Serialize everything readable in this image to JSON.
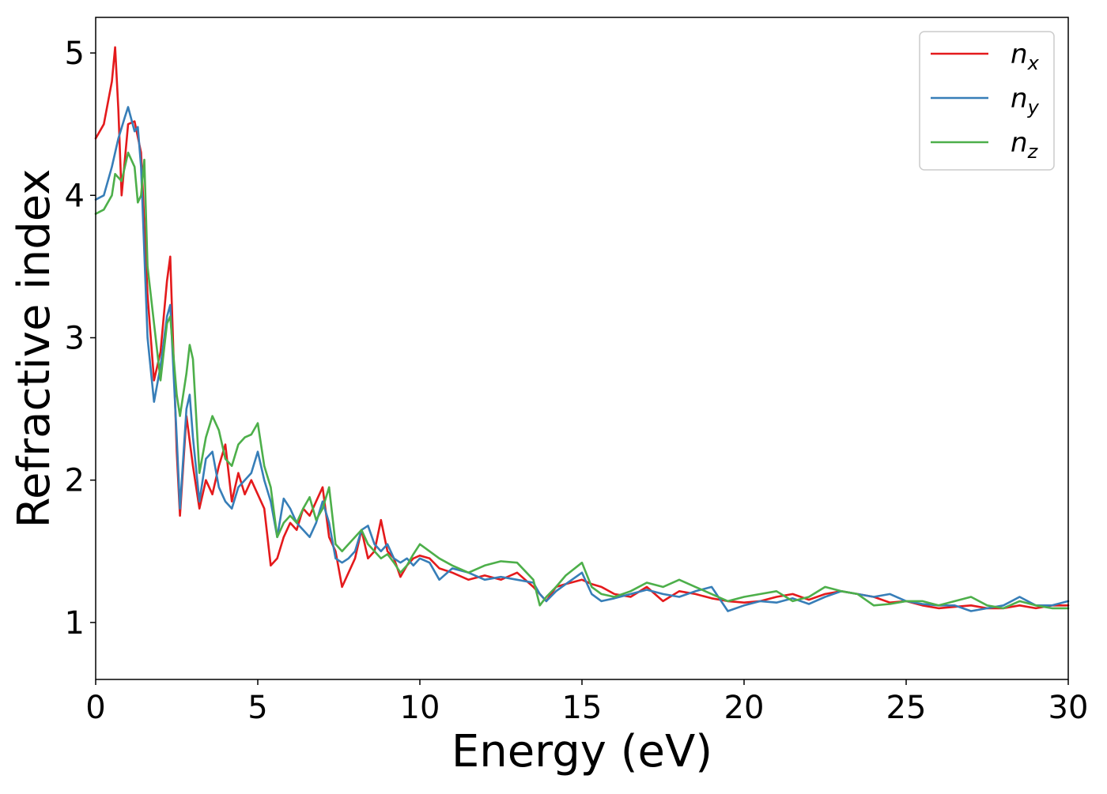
{
  "chart_data": {
    "type": "line",
    "title": "",
    "xlabel": "Energy (eV)",
    "ylabel": "Refractive index",
    "xlim": [
      0,
      30
    ],
    "ylim": [
      0.6,
      5.25
    ],
    "xticks": [
      0,
      5,
      10,
      15,
      20,
      25,
      30
    ],
    "yticks": [
      1,
      2,
      3,
      4,
      5
    ],
    "grid": false,
    "legend_position": "top-right",
    "series": [
      {
        "name": "n_x",
        "label_base": "n",
        "label_sub": "x",
        "color": "#e41a1c",
        "x": [
          0,
          0.25,
          0.5,
          0.6,
          0.7,
          0.8,
          1.0,
          1.2,
          1.4,
          1.6,
          1.8,
          2.0,
          2.2,
          2.3,
          2.5,
          2.6,
          2.8,
          3.0,
          3.2,
          3.4,
          3.6,
          3.8,
          4.0,
          4.2,
          4.4,
          4.6,
          4.8,
          5.0,
          5.2,
          5.4,
          5.6,
          5.8,
          6.0,
          6.2,
          6.4,
          6.6,
          6.8,
          7.0,
          7.2,
          7.4,
          7.6,
          7.8,
          8.0,
          8.2,
          8.4,
          8.6,
          8.8,
          9.0,
          9.2,
          9.4,
          9.6,
          9.8,
          10.0,
          10.3,
          10.6,
          11.0,
          11.5,
          12.0,
          12.5,
          13.0,
          13.5,
          13.7,
          13.9,
          14.2,
          14.5,
          15.0,
          15.3,
          15.6,
          16.0,
          16.5,
          17.0,
          17.5,
          18.0,
          18.5,
          19.0,
          19.5,
          20.0,
          20.5,
          21.0,
          21.5,
          22.0,
          22.5,
          23.0,
          23.5,
          24.0,
          24.5,
          25.0,
          25.5,
          26.0,
          26.5,
          27.0,
          27.5,
          28.0,
          28.5,
          29.0,
          29.5,
          30.0
        ],
        "y": [
          4.4,
          4.5,
          4.8,
          5.04,
          4.6,
          4.0,
          4.5,
          4.52,
          4.3,
          3.3,
          2.7,
          2.9,
          3.4,
          3.57,
          2.2,
          1.75,
          2.45,
          2.1,
          1.8,
          2.0,
          1.9,
          2.1,
          2.25,
          1.85,
          2.05,
          1.9,
          2.0,
          1.9,
          1.8,
          1.4,
          1.45,
          1.6,
          1.7,
          1.65,
          1.8,
          1.75,
          1.85,
          1.95,
          1.6,
          1.5,
          1.25,
          1.35,
          1.45,
          1.65,
          1.45,
          1.5,
          1.72,
          1.5,
          1.45,
          1.32,
          1.4,
          1.45,
          1.47,
          1.45,
          1.38,
          1.35,
          1.3,
          1.33,
          1.3,
          1.35,
          1.25,
          1.2,
          1.15,
          1.25,
          1.27,
          1.3,
          1.27,
          1.25,
          1.2,
          1.18,
          1.25,
          1.15,
          1.22,
          1.2,
          1.17,
          1.15,
          1.14,
          1.15,
          1.18,
          1.2,
          1.16,
          1.2,
          1.22,
          1.2,
          1.18,
          1.14,
          1.15,
          1.12,
          1.1,
          1.11,
          1.12,
          1.1,
          1.1,
          1.12,
          1.1,
          1.12,
          1.12
        ]
      },
      {
        "name": "n_y",
        "label_base": "n",
        "label_sub": "y",
        "color": "#377eb8",
        "x": [
          0,
          0.25,
          0.5,
          0.7,
          0.9,
          1.0,
          1.2,
          1.3,
          1.4,
          1.6,
          1.8,
          2.0,
          2.2,
          2.3,
          2.5,
          2.6,
          2.8,
          2.9,
          3.0,
          3.2,
          3.4,
          3.6,
          3.8,
          4.0,
          4.2,
          4.4,
          4.6,
          4.8,
          5.0,
          5.2,
          5.4,
          5.6,
          5.8,
          6.0,
          6.2,
          6.4,
          6.6,
          6.8,
          7.0,
          7.2,
          7.4,
          7.6,
          7.8,
          8.0,
          8.2,
          8.4,
          8.6,
          8.8,
          9.0,
          9.2,
          9.4,
          9.6,
          9.8,
          10.0,
          10.3,
          10.6,
          11.0,
          11.5,
          12.0,
          12.5,
          13.0,
          13.5,
          13.7,
          13.9,
          14.2,
          14.5,
          15.0,
          15.3,
          15.6,
          16.0,
          16.5,
          17.0,
          17.5,
          18.0,
          18.5,
          19.0,
          19.5,
          20.0,
          20.5,
          21.0,
          21.5,
          22.0,
          22.5,
          23.0,
          23.5,
          24.0,
          24.5,
          25.0,
          25.5,
          26.0,
          26.5,
          27.0,
          27.5,
          28.0,
          28.5,
          29.0,
          29.5,
          30.0
        ],
        "y": [
          3.97,
          4.0,
          4.2,
          4.4,
          4.55,
          4.62,
          4.45,
          4.48,
          4.2,
          3.0,
          2.55,
          2.8,
          3.15,
          3.23,
          2.3,
          1.8,
          2.5,
          2.6,
          2.3,
          1.85,
          2.15,
          2.2,
          1.95,
          1.85,
          1.8,
          1.95,
          2.0,
          2.05,
          2.2,
          2.0,
          1.85,
          1.6,
          1.87,
          1.8,
          1.7,
          1.65,
          1.6,
          1.7,
          1.85,
          1.7,
          1.45,
          1.42,
          1.45,
          1.5,
          1.65,
          1.68,
          1.55,
          1.5,
          1.55,
          1.45,
          1.42,
          1.45,
          1.4,
          1.45,
          1.42,
          1.3,
          1.38,
          1.35,
          1.3,
          1.32,
          1.3,
          1.28,
          1.2,
          1.15,
          1.22,
          1.27,
          1.35,
          1.2,
          1.15,
          1.17,
          1.2,
          1.23,
          1.2,
          1.18,
          1.22,
          1.25,
          1.08,
          1.12,
          1.15,
          1.14,
          1.17,
          1.13,
          1.18,
          1.22,
          1.2,
          1.18,
          1.2,
          1.15,
          1.13,
          1.12,
          1.12,
          1.08,
          1.1,
          1.12,
          1.18,
          1.12,
          1.12,
          1.15
        ]
      },
      {
        "name": "n_z",
        "label_base": "n",
        "label_sub": "z",
        "color": "#4daf4a",
        "x": [
          0,
          0.25,
          0.5,
          0.6,
          0.8,
          1.0,
          1.2,
          1.3,
          1.4,
          1.5,
          1.6,
          1.8,
          2.0,
          2.2,
          2.3,
          2.5,
          2.6,
          2.8,
          2.9,
          3.0,
          3.2,
          3.4,
          3.6,
          3.8,
          4.0,
          4.2,
          4.4,
          4.6,
          4.8,
          5.0,
          5.2,
          5.4,
          5.6,
          5.8,
          6.0,
          6.2,
          6.4,
          6.6,
          6.8,
          7.0,
          7.2,
          7.4,
          7.6,
          7.8,
          8.0,
          8.2,
          8.4,
          8.6,
          8.8,
          9.0,
          9.2,
          9.4,
          9.6,
          9.8,
          10.0,
          10.3,
          10.6,
          11.0,
          11.5,
          12.0,
          12.5,
          13.0,
          13.5,
          13.7,
          13.9,
          14.2,
          14.5,
          15.0,
          15.3,
          15.6,
          16.0,
          16.5,
          17.0,
          17.5,
          18.0,
          18.5,
          19.0,
          19.5,
          20.0,
          20.5,
          21.0,
          21.5,
          22.0,
          22.5,
          23.0,
          23.5,
          24.0,
          24.5,
          25.0,
          25.5,
          26.0,
          26.5,
          27.0,
          27.5,
          28.0,
          28.5,
          29.0,
          29.5,
          30.0
        ],
        "y": [
          3.87,
          3.9,
          4.0,
          4.15,
          4.1,
          4.3,
          4.2,
          3.95,
          4.0,
          4.25,
          3.5,
          3.1,
          2.7,
          3.1,
          3.15,
          2.6,
          2.45,
          2.75,
          2.95,
          2.85,
          2.05,
          2.3,
          2.45,
          2.35,
          2.15,
          2.1,
          2.25,
          2.3,
          2.32,
          2.4,
          2.1,
          1.95,
          1.6,
          1.7,
          1.75,
          1.7,
          1.8,
          1.88,
          1.72,
          1.8,
          1.95,
          1.55,
          1.5,
          1.55,
          1.6,
          1.65,
          1.55,
          1.5,
          1.45,
          1.48,
          1.42,
          1.35,
          1.4,
          1.48,
          1.55,
          1.5,
          1.45,
          1.4,
          1.35,
          1.4,
          1.43,
          1.42,
          1.3,
          1.12,
          1.18,
          1.25,
          1.33,
          1.42,
          1.25,
          1.2,
          1.18,
          1.22,
          1.28,
          1.25,
          1.3,
          1.25,
          1.2,
          1.15,
          1.18,
          1.2,
          1.22,
          1.15,
          1.18,
          1.25,
          1.22,
          1.2,
          1.12,
          1.13,
          1.15,
          1.15,
          1.12,
          1.15,
          1.18,
          1.12,
          1.1,
          1.15,
          1.12,
          1.1,
          1.1
        ]
      }
    ]
  }
}
